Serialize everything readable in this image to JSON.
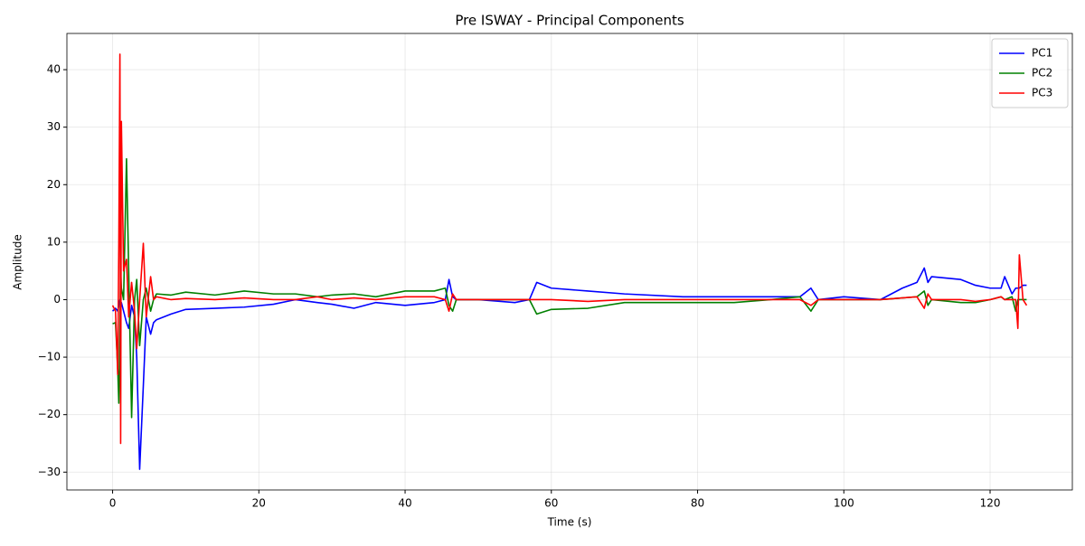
{
  "chart_data": {
    "type": "line",
    "title": "Pre ISWAY - Principal Components",
    "xlabel": "Time (s)",
    "ylabel": "Amplitude",
    "x": [
      0,
      0.4,
      0.7,
      0.85,
      1.0,
      1.1,
      1.2,
      1.5,
      1.9,
      2.2,
      2.6,
      3.0,
      3.3,
      3.7,
      4.2,
      4.6,
      5.2,
      5.6,
      6,
      8,
      10,
      14,
      18,
      22,
      25,
      28,
      30,
      33,
      36,
      40,
      44,
      45.5,
      46,
      46.5,
      47,
      50,
      55,
      57,
      58,
      60,
      65,
      70,
      78,
      85,
      90,
      94,
      95.5,
      96.5,
      100,
      105,
      108,
      110,
      111,
      111.5,
      112,
      116,
      118,
      120,
      121.5,
      122,
      123,
      123.5,
      123.8,
      124,
      124.5,
      125
    ],
    "series": [
      {
        "name": "PC1",
        "color": "#0000ff",
        "values": [
          -2,
          -1.5,
          -2,
          -1,
          0,
          -1,
          -0.5,
          -2,
          -4,
          -5,
          -1,
          -3,
          -10,
          -29.5,
          -15,
          -3,
          -6,
          -4,
          -3.5,
          -2.5,
          -1.7,
          -1.5,
          -1.3,
          -0.8,
          0,
          -0.5,
          -0.8,
          -1.5,
          -0.5,
          -1,
          -0.5,
          0,
          3.5,
          0.5,
          0,
          0,
          -0.5,
          0,
          3,
          2,
          1.5,
          1,
          0.5,
          0.5,
          0.5,
          0.5,
          2,
          0,
          0.5,
          0,
          2,
          3,
          5.5,
          3,
          4,
          3.5,
          2.5,
          2,
          2,
          4,
          1,
          2,
          2,
          2,
          2.5,
          2.5
        ]
      },
      {
        "name": "PC2",
        "color": "#008000",
        "values": [
          -4.2,
          -4,
          -12,
          -18,
          -5,
          5,
          2,
          0,
          24.5,
          5,
          -20.5,
          0,
          3.5,
          -8,
          0,
          2,
          -2,
          0,
          1,
          0.8,
          1.3,
          0.8,
          1.5,
          1,
          1,
          0.5,
          0.8,
          1,
          0.5,
          1.5,
          1.5,
          2,
          -1,
          -2,
          0,
          0,
          0,
          0,
          -2.5,
          -1.7,
          -1.5,
          -0.5,
          -0.5,
          -0.5,
          0,
          0.5,
          -2,
          0,
          0,
          0,
          0.3,
          0.5,
          1.5,
          -1,
          0,
          -0.5,
          -0.5,
          0,
          0.5,
          0,
          0.5,
          -2,
          0,
          0,
          0,
          0
        ]
      },
      {
        "name": "PC3",
        "color": "#ff0000",
        "values": [
          -1,
          -2,
          -13,
          10,
          42.7,
          -25,
          31,
          5,
          7,
          -3,
          3,
          -2,
          -8.5,
          0,
          9.8,
          -3,
          4,
          0,
          0.5,
          0,
          0.2,
          0,
          0.3,
          0,
          0,
          0.5,
          0,
          0.3,
          0,
          0.5,
          0.5,
          0,
          -2,
          1,
          0,
          0,
          0,
          0,
          0,
          0,
          -0.3,
          0,
          0,
          0,
          0,
          0,
          -1,
          0,
          0,
          0,
          0.3,
          0.5,
          -1.5,
          1,
          0,
          0,
          -0.3,
          0,
          0.5,
          0,
          0,
          0,
          -5,
          7.8,
          0,
          -1
        ]
      }
    ],
    "xlim": [
      -6.25,
      131.25
    ],
    "xticks": [
      0,
      20,
      40,
      60,
      80,
      100,
      120
    ],
    "ylim": [
      -33.1,
      46.3
    ],
    "yticks": [
      {
        "value": -30,
        "label": "−30"
      },
      {
        "value": -20,
        "label": "−20"
      },
      {
        "value": -10,
        "label": "−10"
      },
      0,
      10,
      20,
      30,
      40
    ],
    "grid": true,
    "legend": "upper right"
  }
}
